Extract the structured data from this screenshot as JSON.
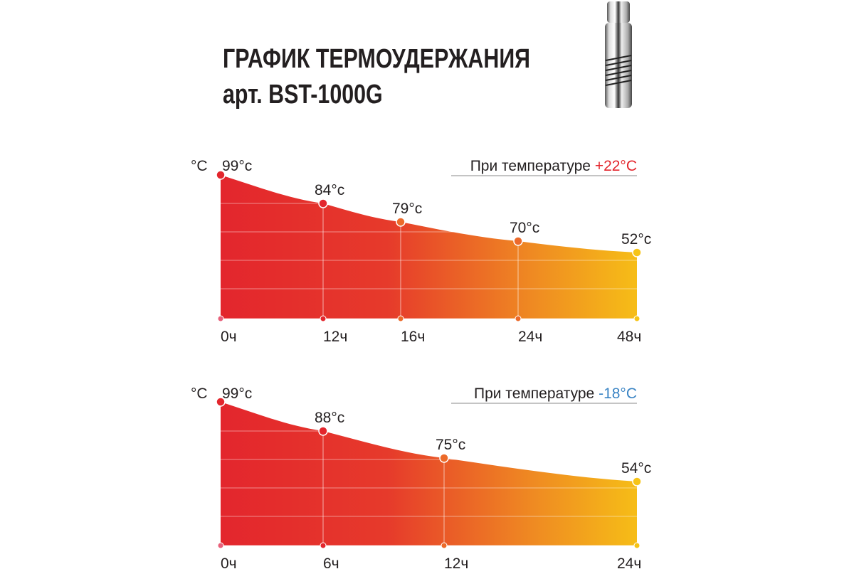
{
  "header": {
    "title": "ГРАФИК ТЕРМОУДЕРЖАНИЯ",
    "subtitle": "арт. BST-1000G",
    "product_image": "thermos-icon"
  },
  "chart_data": [
    {
      "type": "area",
      "title": "При температуре",
      "title_value": "+22°C",
      "title_value_color": "#e3262d",
      "ylabel": "°C",
      "categories": [
        "0ч",
        "12ч",
        "16ч",
        "24ч",
        "48ч"
      ],
      "x": [
        0,
        12,
        16,
        24,
        48
      ],
      "values": [
        99,
        84,
        79,
        70,
        52
      ],
      "value_labels": [
        "99°c",
        "84°c",
        "79°c",
        "70°c",
        "52°c"
      ],
      "gradient": [
        "#e3262d",
        "#e8452a",
        "#f5b71b"
      ],
      "grid": true
    },
    {
      "type": "area",
      "title": "При температуре",
      "title_value": "-18°C",
      "title_value_color": "#3a84c4",
      "ylabel": "°C",
      "categories": [
        "0ч",
        "6ч",
        "12ч",
        "24ч"
      ],
      "x": [
        0,
        6,
        12,
        24
      ],
      "values": [
        99,
        88,
        75,
        54
      ],
      "value_labels": [
        "99°c",
        "88°c",
        "75°c",
        "54°c"
      ],
      "gradient": [
        "#e3262d",
        "#e8452a",
        "#f5b71b"
      ],
      "grid": true
    }
  ]
}
